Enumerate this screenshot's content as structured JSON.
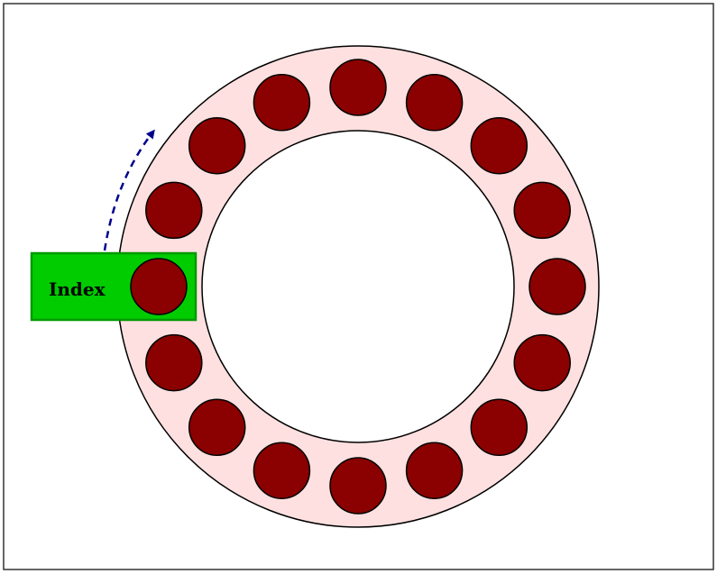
{
  "diagram": {
    "index_label": "Index",
    "slot_count": 16,
    "colors": {
      "frame": "#333333",
      "ring_fill": "#ffe0e0",
      "slot_fill": "#8b0000",
      "index_fill": "#00cc00",
      "index_border": "#009900",
      "arrow": "#00008b",
      "outline": "#000000"
    }
  }
}
